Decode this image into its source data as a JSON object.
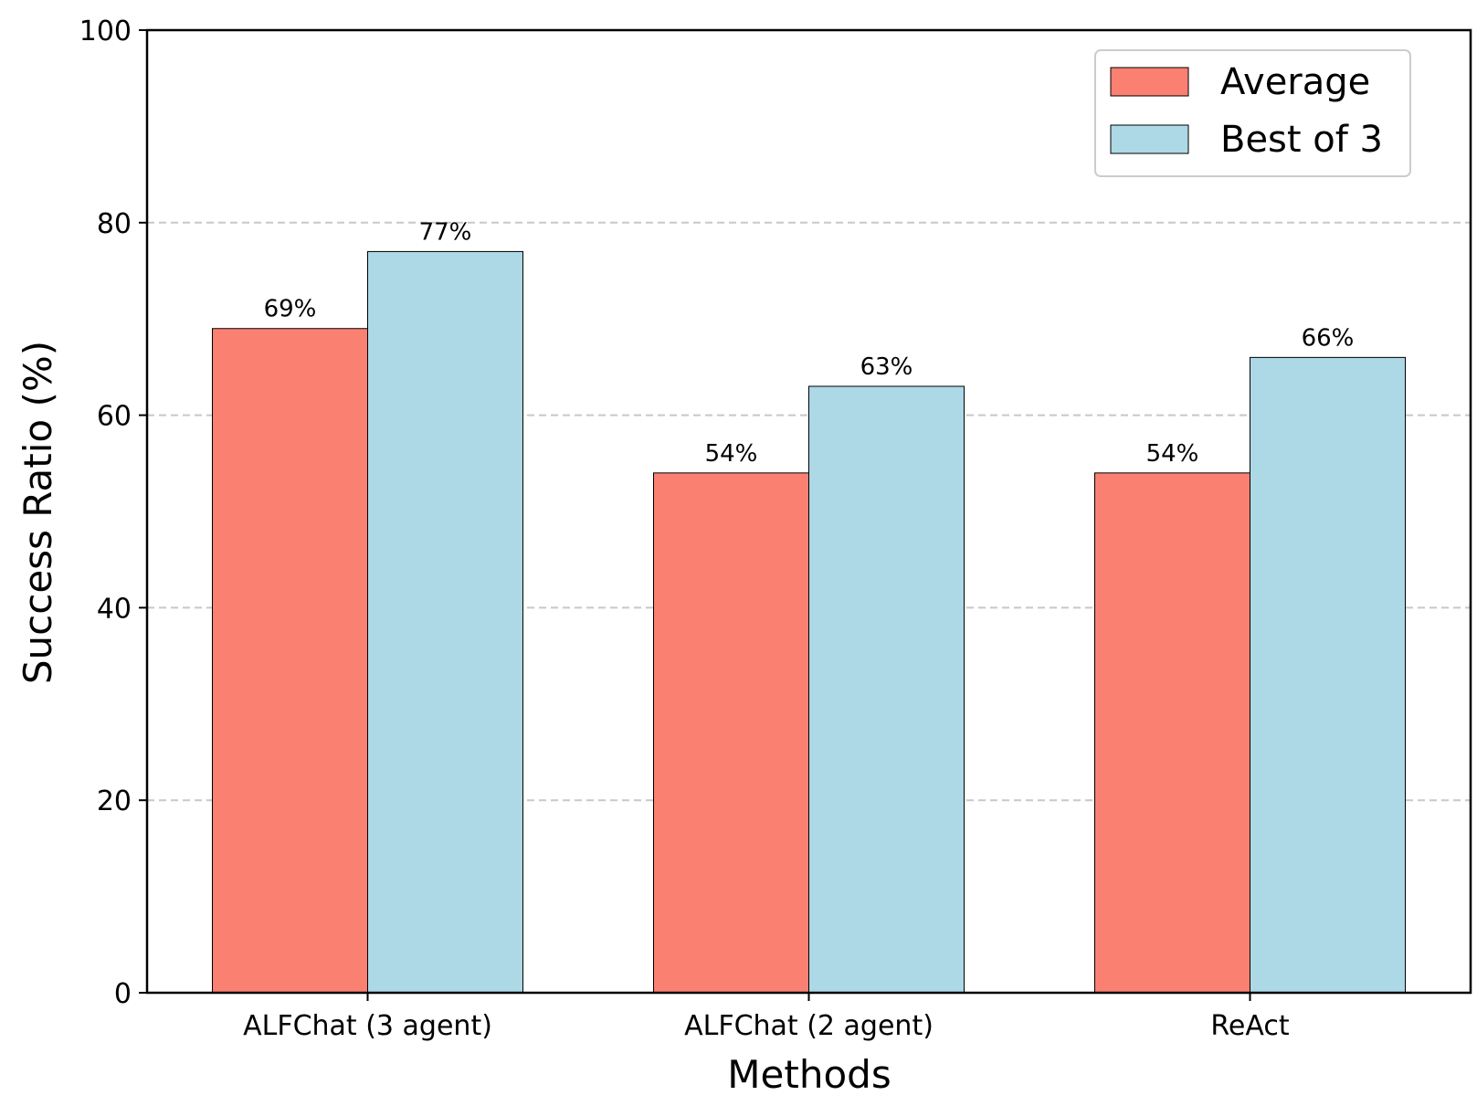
{
  "chart_data": {
    "type": "bar",
    "title": "",
    "xlabel": "Methods",
    "ylabel": "Success Ratio (%)",
    "categories": [
      "ALFChat (3 agent)",
      "ALFChat (2 agent)",
      "ReAct"
    ],
    "series": [
      {
        "name": "Average",
        "values": [
          69,
          54,
          54
        ],
        "labels": [
          "69%",
          "54%",
          "54%"
        ],
        "color": "#fa8072"
      },
      {
        "name": "Best of 3",
        "values": [
          77,
          63,
          66
        ],
        "labels": [
          "77%",
          "63%",
          "66%"
        ],
        "color": "#add8e6"
      }
    ],
    "ylim": [
      0,
      100
    ],
    "yticks": [
      0,
      20,
      40,
      60,
      80,
      100
    ],
    "grid": "horizontal dashed",
    "legend_position": "top-right"
  }
}
